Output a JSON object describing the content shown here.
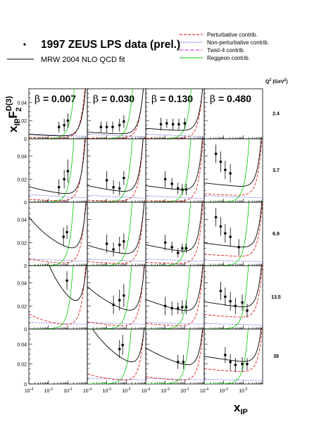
{
  "legend": {
    "data_label": "1997 ZEUS LPS data (prel.)",
    "fit_label": "MRW 2004 NLO QCD fit",
    "entries": [
      {
        "label": "Perturbative contrib.",
        "color": "#e00000",
        "dash": "dashed"
      },
      {
        "label": "Non-perturbative contrib.",
        "color": "#2020e0",
        "dash": "dotted"
      },
      {
        "label": "Twist-4 contrib.",
        "color": "#cc00cc",
        "dash": "dashdot"
      },
      {
        "label": "Reggeon contrib.",
        "color": "#00cc00",
        "dash": "solid"
      }
    ]
  },
  "q2_header": {
    "prefix": "Q",
    "sup": "2",
    "unit": "(GeV",
    "unit_sup": "2",
    "close": ")"
  },
  "y_label": {
    "base": "x",
    "sub": "IP",
    "f": "F",
    "f_sub": "2",
    "f_sup": "D(3)"
  },
  "x_label": {
    "base": "x",
    "sub": "IP"
  },
  "chart_data": {
    "type": "scatter",
    "x_scale": "log",
    "xlim": [
      0.0001,
      0.1
    ],
    "ylim": [
      0,
      0.055
    ],
    "x_tick_labels": [
      {
        "v": 0.0001,
        "base": "10",
        "exp": "-4"
      },
      {
        "v": 0.001,
        "base": "10",
        "exp": "-3"
      },
      {
        "v": 0.01,
        "base": "10",
        "exp": "-2"
      }
    ],
    "y_tick_labels": [
      {
        "v": 0,
        "t": "0"
      },
      {
        "v": 0.02,
        "t": "0.02"
      },
      {
        "v": 0.04,
        "t": "0.04"
      }
    ],
    "betas": [
      {
        "symbol": "β",
        "text": " = 0.007"
      },
      {
        "symbol": "β",
        "text": " = 0.030"
      },
      {
        "symbol": "β",
        "text": " = 0.130"
      },
      {
        "symbol": "β",
        "text": " = 0.480"
      }
    ],
    "q2_values": [
      "2.4",
      "3.7",
      "6.9",
      "13.5",
      "39"
    ],
    "rows": [
      [
        {
          "points": [
            [
              0.0035,
              0.013,
              0.006
            ],
            [
              0.0065,
              0.015,
              0.007
            ],
            [
              0.01,
              0.02,
              0.008
            ]
          ],
          "total": {
            "a": 0.0035,
            "m": 0.0015,
            "b": 0.12,
            "k": 8
          },
          "pert": {
            "a": 0.0008,
            "m": 0.0015,
            "b": 0.2,
            "k": 10
          },
          "nonpert": {
            "a": 0.006,
            "m": 5e-05,
            "b": 0.1,
            "k": 0
          },
          "regg": {
            "a": 0.0001,
            "m": 0.0005,
            "b": 0.0,
            "k": 120
          }
        },
        {
          "points": [
            [
              0.0005,
              0.013,
              0.006
            ],
            [
              0.001,
              0.013,
              0.006
            ],
            [
              0.002,
              0.013,
              0.006
            ],
            [
              0.0045,
              0.015,
              0.007
            ],
            [
              0.0075,
              0.019,
              0.007
            ]
          ],
          "total": {
            "a": 0.006,
            "m": 0.0012,
            "b": 0.08,
            "k": 9
          },
          "pert": {
            "a": 0.0005,
            "m": 0.0012,
            "b": 0.15,
            "k": 10
          },
          "nonpert": {
            "a": 0.0055,
            "m": 5e-05,
            "b": 0.1,
            "k": 0
          },
          "regg": {
            "a": 0.0001,
            "m": 0.0005,
            "b": 0.0,
            "k": 120
          }
        },
        {
          "points": [
            [
              0.0006,
              0.016,
              0.007
            ],
            [
              0.0012,
              0.017,
              0.005
            ],
            [
              0.0025,
              0.016,
              0.006
            ],
            [
              0.005,
              0.016,
              0.006
            ],
            [
              0.01,
              0.017,
              0.006
            ]
          ],
          "total": {
            "a": 0.01,
            "m": 0.001,
            "b": 0.06,
            "k": 7
          },
          "pert": {
            "a": 0.0005,
            "m": 0.0012,
            "b": 0.12,
            "k": 8
          },
          "nonpert": {
            "a": 0.0055,
            "m": 5e-05,
            "b": 0.1,
            "k": 0
          },
          "regg": {
            "a": 0.0001,
            "m": 0.0005,
            "b": 0.0,
            "k": 120
          }
        },
        {
          "points": [],
          "total": null,
          "pert": null,
          "nonpert": null,
          "regg": null
        }
      ],
      [
        {
          "points": [
            [
              0.0035,
              0.013,
              0.007
            ],
            [
              0.0065,
              0.02,
              0.008
            ],
            [
              0.01,
              0.027,
              0.01
            ]
          ],
          "total": {
            "a": 0.009,
            "m": 0.0015,
            "b": 0.15,
            "k": 8
          },
          "pert": {
            "a": 0.0015,
            "m": 0.0015,
            "b": 0.18,
            "k": 10
          },
          "nonpert": {
            "a": 0.007,
            "m": 5e-05,
            "b": 0.08,
            "k": 0
          },
          "regg": {
            "a": 0.0001,
            "m": 0.0005,
            "b": 0.0,
            "k": 130
          }
        },
        {
          "points": [
            [
              0.001,
              0.019,
              0.008
            ],
            [
              0.0022,
              0.013,
              0.006
            ],
            [
              0.0045,
              0.012,
              0.006
            ],
            [
              0.0075,
              0.021,
              0.006
            ]
          ],
          "total": {
            "a": 0.011,
            "m": 0.0012,
            "b": 0.11,
            "k": 9
          },
          "pert": {
            "a": 0.0012,
            "m": 0.0012,
            "b": 0.15,
            "k": 10
          },
          "nonpert": {
            "a": 0.0065,
            "m": 5e-05,
            "b": 0.08,
            "k": 0
          },
          "regg": {
            "a": 0.0001,
            "m": 0.0005,
            "b": 0.0,
            "k": 130
          }
        },
        {
          "points": [
            [
              0.001,
              0.02,
              0.007
            ],
            [
              0.0022,
              0.016,
              0.005
            ],
            [
              0.0045,
              0.012,
              0.005
            ],
            [
              0.0075,
              0.011,
              0.005
            ],
            [
              0.012,
              0.011,
              0.005
            ]
          ],
          "total": {
            "a": 0.012,
            "m": 0.0012,
            "b": 0.07,
            "k": 7
          },
          "pert": {
            "a": 0.001,
            "m": 0.0012,
            "b": 0.1,
            "k": 7
          },
          "nonpert": {
            "a": 0.006,
            "m": 5e-05,
            "b": 0.08,
            "k": 0
          },
          "regg": {
            "a": 0.0001,
            "m": 0.0005,
            "b": 0.0,
            "k": 130
          }
        },
        {
          "points": [
            [
              0.0004,
              0.042,
              0.008
            ],
            [
              0.0007,
              0.035,
              0.009
            ],
            [
              0.0012,
              0.028,
              0.008
            ],
            [
              0.0022,
              0.025,
              0.008
            ]
          ],
          "total": {
            "a": 0.014,
            "m": 0.0035,
            "b": 0.05,
            "k": 6
          },
          "pert": {
            "a": 0.006,
            "m": 0.0035,
            "b": 0.05,
            "k": 6
          },
          "nonpert": {
            "a": 0.006,
            "m": 5e-05,
            "b": 0.06,
            "k": 0
          },
          "regg": {
            "a": 0.0001,
            "m": 0.0005,
            "b": 0.0,
            "k": 130
          }
        }
      ],
      [
        {
          "points": [
            [
              0.006,
              0.025,
              0.008
            ],
            [
              0.009,
              0.029,
              0.006
            ]
          ],
          "total": {
            "a": 0.02,
            "m": 0.003,
            "b": 0.22,
            "k": 6
          },
          "pert": {
            "a": 0.0025,
            "m": 0.003,
            "b": 0.25,
            "k": 8
          },
          "nonpert": {
            "a": 0.006,
            "m": 5e-05,
            "b": 0.06,
            "k": 0
          },
          "regg": {
            "a": 0.0001,
            "m": 0.0005,
            "b": 0.0,
            "k": 140
          }
        },
        {
          "points": [
            [
              0.001,
              0.019,
              0.008
            ],
            [
              0.0022,
              0.014,
              0.006
            ],
            [
              0.0045,
              0.018,
              0.007
            ],
            [
              0.0075,
              0.021,
              0.007
            ]
          ],
          "total": {
            "a": 0.012,
            "m": 0.002,
            "b": 0.13,
            "k": 7
          },
          "pert": {
            "a": 0.002,
            "m": 0.002,
            "b": 0.18,
            "k": 8
          },
          "nonpert": {
            "a": 0.006,
            "m": 5e-05,
            "b": 0.06,
            "k": 0
          },
          "regg": {
            "a": 0.0001,
            "m": 0.0005,
            "b": 0.0,
            "k": 140
          }
        },
        {
          "points": [
            [
              0.001,
              0.02,
              0.007
            ],
            [
              0.0022,
              0.016,
              0.005
            ],
            [
              0.0045,
              0.011,
              0.004
            ],
            [
              0.0075,
              0.015,
              0.004
            ],
            [
              0.012,
              0.015,
              0.004
            ]
          ],
          "total": {
            "a": 0.014,
            "m": 0.0018,
            "b": 0.09,
            "k": 7
          },
          "pert": {
            "a": 0.002,
            "m": 0.0018,
            "b": 0.12,
            "k": 7
          },
          "nonpert": {
            "a": 0.006,
            "m": 5e-05,
            "b": 0.06,
            "k": 0
          },
          "regg": {
            "a": 0.0001,
            "m": 0.0005,
            "b": 0.0,
            "k": 140
          }
        },
        {
          "points": [
            [
              0.0004,
              0.042,
              0.008
            ],
            [
              0.0007,
              0.034,
              0.008
            ],
            [
              0.0012,
              0.028,
              0.008
            ],
            [
              0.0022,
              0.025,
              0.008
            ],
            [
              0.006,
              0.016,
              0.007
            ]
          ],
          "total": {
            "a": 0.016,
            "m": 0.006,
            "b": 0.05,
            "k": 5
          },
          "pert": {
            "a": 0.008,
            "m": 0.006,
            "b": 0.05,
            "k": 5
          },
          "nonpert": {
            "a": 0.005,
            "m": 5e-05,
            "b": 0.05,
            "k": 0
          },
          "regg": {
            "a": 0.0001,
            "m": 0.0005,
            "b": 0.0,
            "k": 140
          }
        }
      ],
      [
        {
          "points": [
            [
              0.009,
              0.042,
              0.008
            ]
          ],
          "total": {
            "a": 0.035,
            "m": 0.005,
            "b": 0.3,
            "k": 5
          },
          "pert": {
            "a": 0.004,
            "m": 0.005,
            "b": 0.3,
            "k": 8
          },
          "nonpert": {
            "a": 0.006,
            "m": 5e-05,
            "b": 0.05,
            "k": 0
          },
          "regg": {
            "a": 0.0001,
            "m": 0.0005,
            "b": 0.0,
            "k": 160
          }
        },
        {
          "points": [
            [
              0.0022,
              0.021,
              0.008
            ],
            [
              0.0045,
              0.025,
              0.009
            ],
            [
              0.0075,
              0.029,
              0.01
            ]
          ],
          "total": {
            "a": 0.02,
            "m": 0.003,
            "b": 0.18,
            "k": 6
          },
          "pert": {
            "a": 0.003,
            "m": 0.003,
            "b": 0.22,
            "k": 8
          },
          "nonpert": {
            "a": 0.006,
            "m": 5e-05,
            "b": 0.05,
            "k": 0
          },
          "regg": {
            "a": 0.0001,
            "m": 0.0005,
            "b": 0.0,
            "k": 160
          }
        },
        {
          "points": [
            [
              0.001,
              0.02,
              0.008
            ],
            [
              0.0022,
              0.018,
              0.006
            ],
            [
              0.0045,
              0.018,
              0.005
            ],
            [
              0.0075,
              0.019,
              0.006
            ],
            [
              0.012,
              0.019,
              0.006
            ]
          ],
          "total": {
            "a": 0.018,
            "m": 0.0025,
            "b": 0.11,
            "k": 6
          },
          "pert": {
            "a": 0.003,
            "m": 0.0025,
            "b": 0.15,
            "k": 7
          },
          "nonpert": {
            "a": 0.006,
            "m": 5e-05,
            "b": 0.05,
            "k": 0
          },
          "regg": {
            "a": 0.0001,
            "m": 0.0005,
            "b": 0.0,
            "k": 160
          }
        },
        {
          "points": [
            [
              0.0007,
              0.033,
              0.008
            ],
            [
              0.0012,
              0.028,
              0.008
            ],
            [
              0.0022,
              0.024,
              0.008
            ],
            [
              0.004,
              0.02,
              0.007
            ],
            [
              0.009,
              0.023,
              0.007
            ],
            [
              0.016,
              0.016,
              0.006
            ]
          ],
          "total": {
            "a": 0.019,
            "m": 0.008,
            "b": 0.05,
            "k": 5
          },
          "pert": {
            "a": 0.01,
            "m": 0.008,
            "b": 0.05,
            "k": 5
          },
          "nonpert": {
            "a": 0.005,
            "m": 5e-05,
            "b": 0.05,
            "k": 0
          },
          "regg": {
            "a": 0.0001,
            "m": 0.0005,
            "b": 0.0,
            "k": 160
          }
        }
      ],
      [
        {
          "points": [],
          "total": null,
          "pert": null,
          "nonpert": null,
          "regg": null
        },
        {
          "points": [
            [
              0.0045,
              0.035,
              0.009
            ],
            [
              0.0065,
              0.039,
              0.01
            ]
          ],
          "total": {
            "a": 0.028,
            "m": 0.004,
            "b": 0.22,
            "k": 6
          },
          "pert": {
            "a": 0.004,
            "m": 0.004,
            "b": 0.25,
            "k": 8
          },
          "nonpert": {
            "a": 0.006,
            "m": 5e-05,
            "b": 0.05,
            "k": 0
          },
          "regg": {
            "a": 0.0001,
            "m": 0.0005,
            "b": 0.0,
            "k": 170
          }
        },
        {
          "points": [
            [
              0.0045,
              0.022,
              0.007
            ],
            [
              0.0085,
              0.022,
              0.007
            ]
          ],
          "total": {
            "a": 0.022,
            "m": 0.0035,
            "b": 0.14,
            "k": 6
          },
          "pert": {
            "a": 0.004,
            "m": 0.0035,
            "b": 0.17,
            "k": 7
          },
          "nonpert": {
            "a": 0.006,
            "m": 5e-05,
            "b": 0.05,
            "k": 0
          },
          "regg": {
            "a": 0.0001,
            "m": 0.0005,
            "b": 0.0,
            "k": 170
          }
        },
        {
          "points": [
            [
              0.0012,
              0.029,
              0.008
            ],
            [
              0.0022,
              0.022,
              0.008
            ],
            [
              0.004,
              0.019,
              0.007
            ],
            [
              0.009,
              0.02,
              0.007
            ],
            [
              0.016,
              0.02,
              0.006
            ]
          ],
          "total": {
            "a": 0.022,
            "m": 0.01,
            "b": 0.05,
            "k": 5
          },
          "pert": {
            "a": 0.012,
            "m": 0.01,
            "b": 0.05,
            "k": 5
          },
          "nonpert": {
            "a": 0.005,
            "m": 5e-05,
            "b": 0.05,
            "k": 0
          },
          "regg": {
            "a": 0.0001,
            "m": 0.0005,
            "b": 0.0,
            "k": 170
          }
        }
      ]
    ]
  }
}
